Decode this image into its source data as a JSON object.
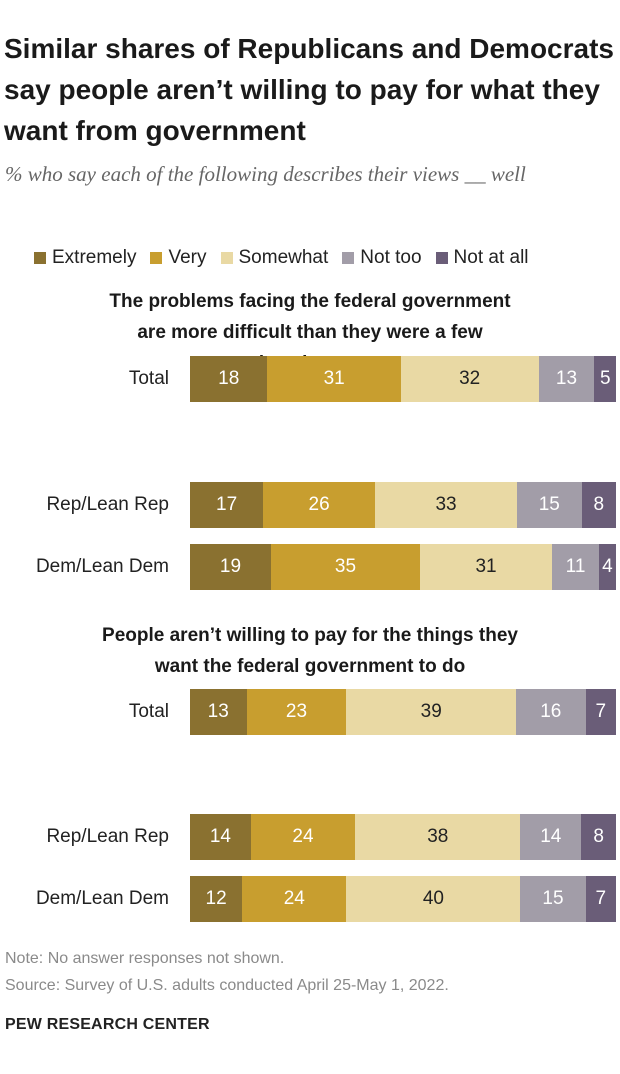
{
  "title": "Similar shares of Republicans and Democrats say people aren’t willing to pay for what they want from government",
  "subtitle": "% who say each of the following describes their views __ well",
  "colors": {
    "Extremely": "#8a7130",
    "Very": "#c89e2f",
    "Somewhat": "#e9d9a4",
    "Not too": "#a29da8",
    "Not at all": "#6a5d78",
    "text_on_dark": "#ffffff",
    "text_on_light": "#222222"
  },
  "chart_data": {
    "type": "stacked-bar",
    "orientation": "horizontal",
    "unit": "%",
    "legend": [
      "Extremely",
      "Very",
      "Somewhat",
      "Not too",
      "Not at all"
    ],
    "legend_placement": "top",
    "panels": [
      {
        "title": "The problems facing the federal government are more difficult than they were a few decades ago",
        "rows": [
          {
            "label": "Total",
            "values": [
              18,
              31,
              32,
              13,
              5
            ]
          },
          {
            "label": "Rep/Lean Rep",
            "values": [
              17,
              26,
              33,
              15,
              8
            ]
          },
          {
            "label": "Dem/Lean Dem",
            "values": [
              19,
              35,
              31,
              11,
              4
            ]
          }
        ]
      },
      {
        "title": "People aren’t willing to pay for the things they want the federal government to do",
        "rows": [
          {
            "label": "Total",
            "values": [
              13,
              23,
              39,
              16,
              7
            ]
          },
          {
            "label": "Rep/Lean Rep",
            "values": [
              14,
              24,
              38,
              14,
              8
            ]
          },
          {
            "label": "Dem/Lean Dem",
            "values": [
              12,
              24,
              40,
              15,
              7
            ]
          }
        ]
      }
    ]
  },
  "note": "Note: No answer responses not shown.",
  "source": "Source: Survey of U.S. adults conducted April 25-May 1, 2022.",
  "brand": "PEW RESEARCH CENTER"
}
